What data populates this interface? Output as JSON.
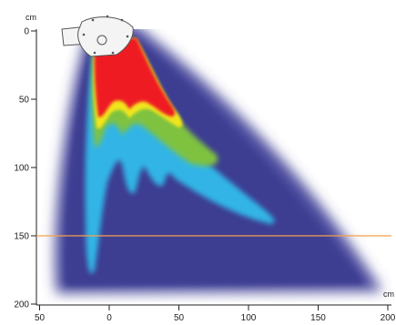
{
  "y_axis": {
    "unit": "cm",
    "ticks": [
      {
        "value": 0,
        "label": "0"
      },
      {
        "value": 50,
        "label": "50"
      },
      {
        "value": 100,
        "label": "100"
      },
      {
        "value": 150,
        "label": "150"
      },
      {
        "value": 200,
        "label": "200"
      }
    ]
  },
  "x_axis": {
    "unit": "cm",
    "ticks": [
      {
        "value": -50,
        "label": "50"
      },
      {
        "value": 0,
        "label": "0"
      },
      {
        "value": 50,
        "label": "50"
      },
      {
        "value": 100,
        "label": "100"
      },
      {
        "value": 150,
        "label": "150"
      },
      {
        "value": 200,
        "label": "200"
      }
    ]
  },
  "reference_line": {
    "y": 150,
    "color": "#f5a04a"
  },
  "colors": {
    "background_field": "#4a4a9c",
    "field_light": "#7b7bc0",
    "cyan": "#33b5e6",
    "green": "#7fc241",
    "yellow": "#f2e51c",
    "red": "#ee1c24",
    "transducer_fill": "#f4f4f4",
    "transducer_stroke": "#555555"
  },
  "elements": {
    "transducer": "ultrasound-transducer-icon"
  }
}
